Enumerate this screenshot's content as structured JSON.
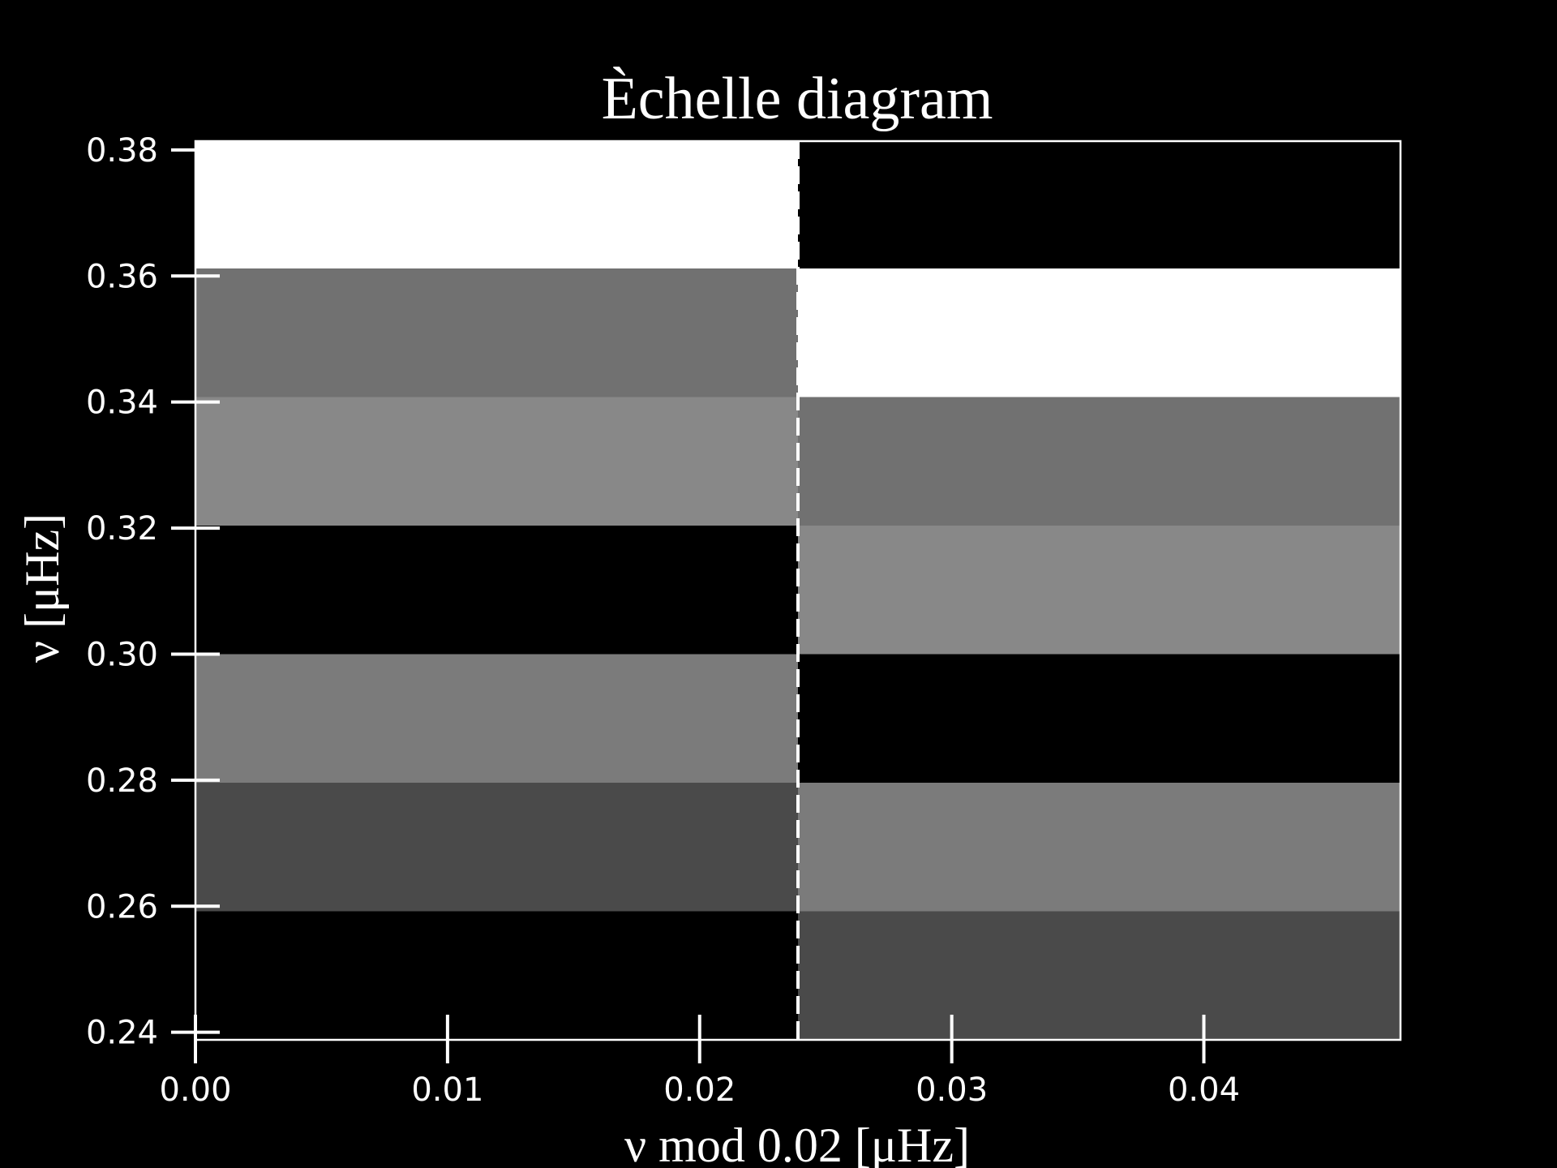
{
  "chart_data": {
    "type": "heatmap",
    "title": "Èchelle diagram",
    "xlabel": "ν mod 0.02 [μHz]",
    "ylabel": "ν [μHz]",
    "xlim": [
      0.0,
      0.0478
    ],
    "ylim": [
      0.2388,
      0.3814
    ],
    "x_ticks": [
      "0.00",
      "0.01",
      "0.02",
      "0.03",
      "0.04"
    ],
    "x_tick_values": [
      0.0,
      0.01,
      0.02,
      0.03,
      0.04
    ],
    "y_ticks": [
      "0.24",
      "0.26",
      "0.28",
      "0.30",
      "0.32",
      "0.34",
      "0.36",
      "0.38"
    ],
    "y_tick_values": [
      0.24,
      0.26,
      0.28,
      0.3,
      0.32,
      0.34,
      0.36,
      0.38
    ],
    "colormap": "gray",
    "cells": [
      {
        "x0": 0.0,
        "x1": 0.0239,
        "y0": 0.2388,
        "y1": 0.2592,
        "color": "#000000"
      },
      {
        "x0": 0.0,
        "x1": 0.0239,
        "y0": 0.2592,
        "y1": 0.2796,
        "color": "#4a4a4a"
      },
      {
        "x0": 0.0,
        "x1": 0.0239,
        "y0": 0.2796,
        "y1": 0.3,
        "color": "#7b7b7b"
      },
      {
        "x0": 0.0,
        "x1": 0.0239,
        "y0": 0.3,
        "y1": 0.3204,
        "color": "#000000"
      },
      {
        "x0": 0.0,
        "x1": 0.0239,
        "y0": 0.3204,
        "y1": 0.3408,
        "color": "#888888"
      },
      {
        "x0": 0.0,
        "x1": 0.0239,
        "y0": 0.3408,
        "y1": 0.3612,
        "color": "#717171"
      },
      {
        "x0": 0.0,
        "x1": 0.0239,
        "y0": 0.3612,
        "y1": 0.3814,
        "color": "#ffffff"
      },
      {
        "x0": 0.0239,
        "x1": 0.0478,
        "y0": 0.2388,
        "y1": 0.2592,
        "color": "#4a4a4a"
      },
      {
        "x0": 0.0239,
        "x1": 0.0478,
        "y0": 0.2592,
        "y1": 0.2796,
        "color": "#7b7b7b"
      },
      {
        "x0": 0.0239,
        "x1": 0.0478,
        "y0": 0.2796,
        "y1": 0.3,
        "color": "#000000"
      },
      {
        "x0": 0.0239,
        "x1": 0.0478,
        "y0": 0.3,
        "y1": 0.3204,
        "color": "#888888"
      },
      {
        "x0": 0.0239,
        "x1": 0.0478,
        "y0": 0.3204,
        "y1": 0.3408,
        "color": "#717171"
      },
      {
        "x0": 0.0239,
        "x1": 0.0478,
        "y0": 0.3408,
        "y1": 0.3612,
        "color": "#ffffff"
      },
      {
        "x0": 0.0239,
        "x1": 0.0478,
        "y0": 0.3612,
        "y1": 0.3814,
        "color": "#000000"
      }
    ],
    "vline": {
      "x": 0.0239,
      "style": "dashed",
      "color": "#ffffff"
    },
    "grid": false,
    "legend": "none"
  }
}
